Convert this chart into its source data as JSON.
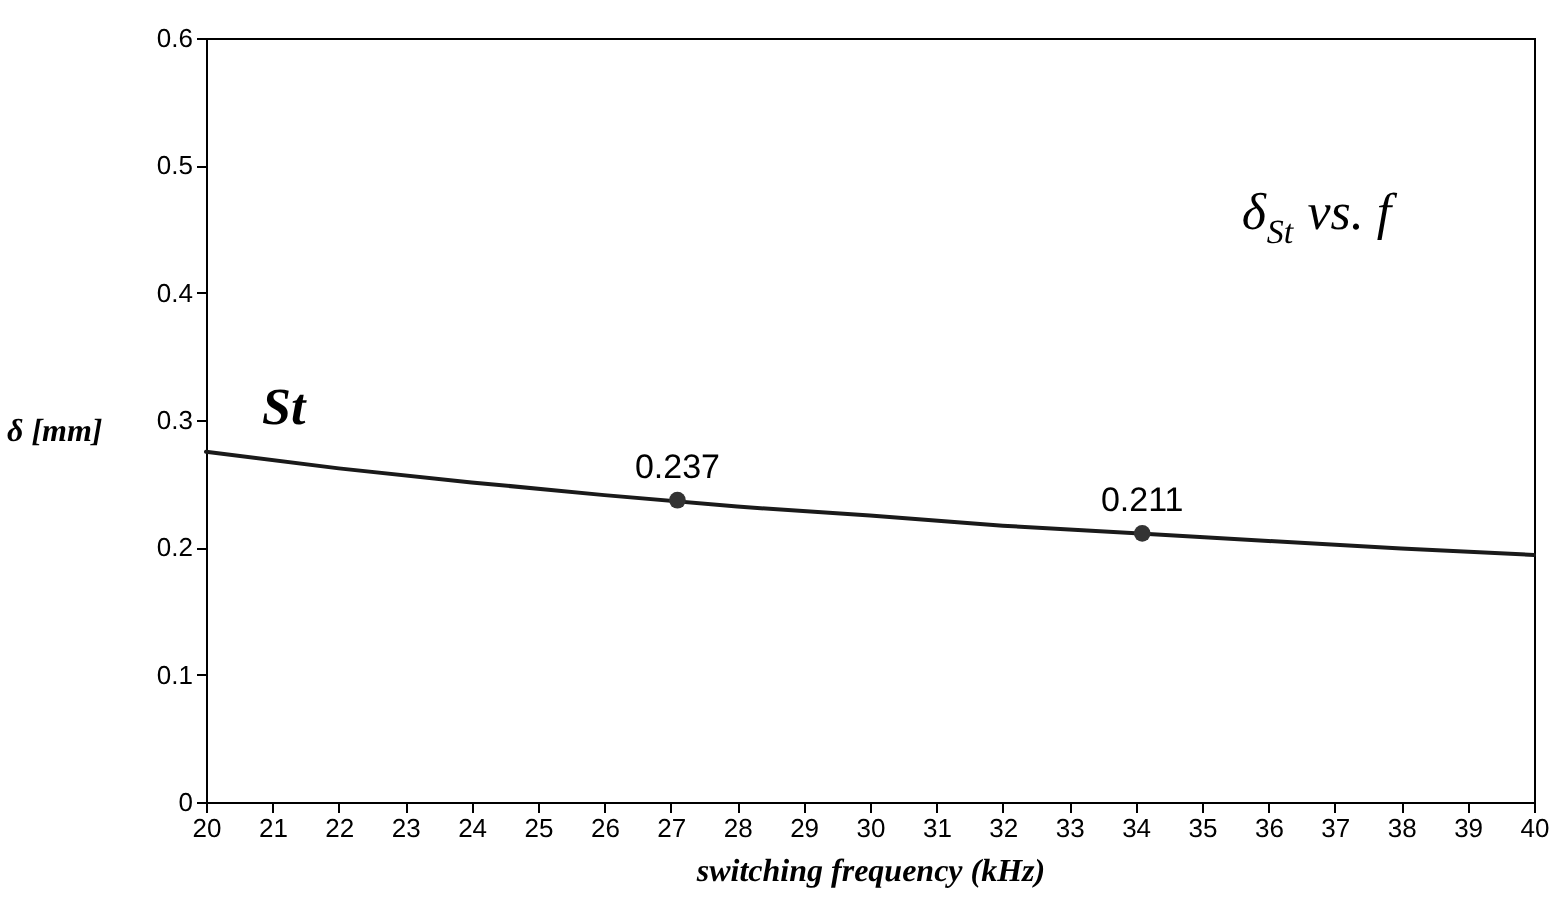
{
  "chart_data": {
    "type": "line",
    "xlabel": "switching frequency (kHz)",
    "ylabel": "δ [mm]",
    "annotations": [
      "δ$_{St}$ vs. f"
    ],
    "series": [
      {
        "name": "St",
        "type": "line",
        "color": "#1a1a1a",
        "x": [
          20,
          22,
          24,
          26,
          28,
          30,
          32,
          34,
          36,
          38,
          40
        ],
        "values": [
          0.275,
          0.262,
          0.251,
          0.241,
          0.232,
          0.225,
          0.217,
          0.211,
          0.205,
          0.199,
          0.194
        ]
      },
      {
        "type": "scatter",
        "color": "#333333",
        "x": [
          27.1,
          34.1
        ],
        "values": [
          0.237,
          0.211
        ],
        "value_labels": [
          "0.237",
          "0.211"
        ]
      }
    ],
    "xlim": [
      20,
      40
    ],
    "xticks": [
      20,
      21,
      22,
      23,
      24,
      25,
      26,
      27,
      28,
      29,
      30,
      31,
      32,
      33,
      34,
      35,
      36,
      37,
      38,
      39,
      40
    ],
    "ylim": [
      0,
      0.6
    ],
    "yticks": [
      0,
      0.1,
      0.2,
      0.3,
      0.4,
      0.5,
      0.6
    ],
    "grid": false
  }
}
